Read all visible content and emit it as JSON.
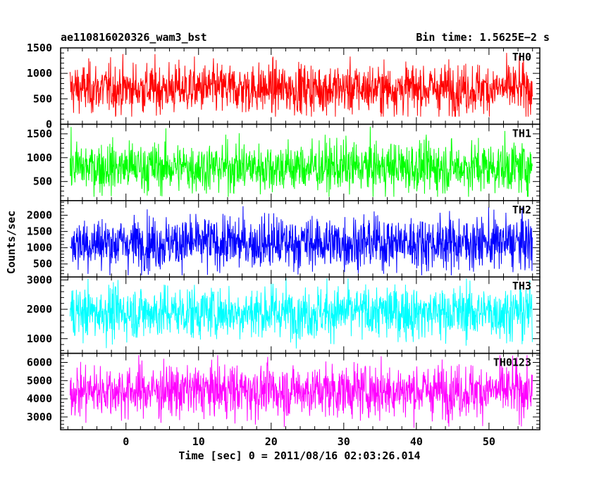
{
  "header": {
    "title": "ae110816020326_wam3_bst",
    "bin_time": "Bin time: 1.5625E−2 s"
  },
  "chart_data": {
    "type": "line",
    "xlabel": "Time [sec] 0 = 2011/08/16 02:03:26.014",
    "ylabel": "Counts/sec",
    "xlim": [
      -9,
      57
    ],
    "x_ticks": [
      0,
      10,
      20,
      30,
      40,
      50
    ],
    "x_data_range": [
      -7.7,
      56.0
    ],
    "bin_time_s": 0.015625,
    "grid": false,
    "panels": [
      {
        "name": "TH0",
        "color": "#ff0000",
        "ylim": [
          0,
          1500
        ],
        "y_ticks": [
          0,
          500,
          1000,
          1500
        ],
        "mean": 700,
        "min": 150,
        "max": 1500
      },
      {
        "name": "TH1",
        "color": "#00ff00",
        "ylim": [
          100,
          1700
        ],
        "y_ticks": [
          500,
          1000,
          1500
        ],
        "mean": 800,
        "min": 180,
        "max": 1650
      },
      {
        "name": "TH2",
        "color": "#0000ff",
        "ylim": [
          100,
          2450
        ],
        "y_ticks": [
          500,
          1000,
          1500,
          2000
        ],
        "mean": 1150,
        "min": 150,
        "max": 2400
      },
      {
        "name": "TH3",
        "color": "#00ffff",
        "ylim": [
          500,
          3100
        ],
        "y_ticks": [
          1000,
          2000,
          3000
        ],
        "mean": 1900,
        "min": 600,
        "max": 3100
      },
      {
        "name": "TH0123",
        "color": "#ff00ff",
        "ylim": [
          2300,
          6500
        ],
        "y_ticks": [
          3000,
          4000,
          5000,
          6000
        ],
        "mean": 4450,
        "min": 2400,
        "max": 6400
      }
    ]
  }
}
